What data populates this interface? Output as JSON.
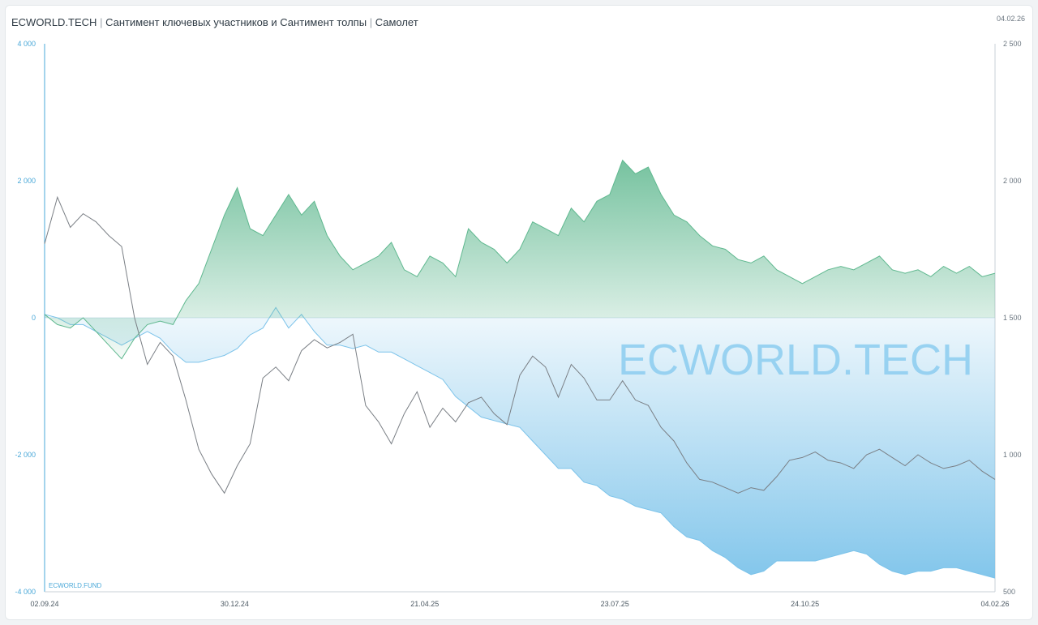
{
  "header": {
    "brand": "ECWORLD.TECH",
    "subtitle": "Сантимент ключевых участников и Сантимент толпы",
    "ticker": "Самолет",
    "separator": "|",
    "top_right_date": "04.02.26"
  },
  "watermark": "ECWORLD.TECH",
  "footer_label": "ECWORLD.FUND",
  "colors": {
    "key_participants": "#5fb88f",
    "crowd": "#7cc3ea",
    "price": "#7a7f85",
    "axis_left": "#4aa8d8",
    "axis_right": "#6b7680",
    "watermark": "#8ccdf0"
  },
  "chart_data": {
    "type": "area",
    "title": "ECWORLD.TECH | Сантимент ключевых участников и Сантимент толпы | Самолет",
    "x_ticks": [
      "02.09.24",
      "30.12.24",
      "21.04.25",
      "23.07.25",
      "24.10.25",
      "04.02.26"
    ],
    "x_count": 75,
    "left_axis": {
      "min": -4000,
      "max": 4000,
      "ticks": [
        "4 000",
        "2 000",
        "0",
        "-2 000",
        "-4 000"
      ],
      "tick_values": [
        4000,
        2000,
        0,
        -2000,
        -4000
      ]
    },
    "right_axis": {
      "min": 500,
      "max": 2500,
      "ticks": [
        "2 500",
        "2 000",
        "1 500",
        "1 000",
        "500"
      ],
      "tick_values": [
        2500,
        2000,
        1500,
        1000,
        500
      ]
    },
    "series": [
      {
        "name": "Сантимент ключевых участников",
        "axis": "left",
        "style": "area",
        "values": [
          50,
          -100,
          -150,
          0,
          -200,
          -400,
          -600,
          -300,
          -100,
          -50,
          -100,
          250,
          500,
          1000,
          1500,
          1900,
          1300,
          1200,
          1500,
          1800,
          1500,
          1700,
          1200,
          900,
          700,
          800,
          900,
          1100,
          700,
          600,
          900,
          800,
          600,
          1300,
          1100,
          1000,
          800,
          1000,
          1400,
          1300,
          1200,
          1600,
          1400,
          1700,
          1800,
          2300,
          2100,
          2200,
          1800,
          1500,
          1400,
          1200,
          1050,
          1000,
          850,
          800,
          900,
          700,
          600,
          500,
          600,
          700,
          750,
          700,
          800,
          900,
          700,
          650,
          700,
          600,
          750,
          650,
          750,
          600,
          650
        ]
      },
      {
        "name": "Сантимент толпы",
        "axis": "left",
        "style": "area",
        "values": [
          50,
          0,
          -100,
          -100,
          -200,
          -300,
          -400,
          -300,
          -200,
          -300,
          -500,
          -650,
          -650,
          -600,
          -550,
          -450,
          -250,
          -150,
          150,
          -150,
          50,
          -200,
          -400,
          -400,
          -450,
          -400,
          -500,
          -500,
          -600,
          -700,
          -800,
          -900,
          -1150,
          -1300,
          -1450,
          -1500,
          -1550,
          -1600,
          -1800,
          -2000,
          -2200,
          -2200,
          -2400,
          -2450,
          -2600,
          -2650,
          -2750,
          -2800,
          -2850,
          -3050,
          -3200,
          -3250,
          -3400,
          -3500,
          -3650,
          -3750,
          -3700,
          -3550,
          -3550,
          -3550,
          -3550,
          -3500,
          -3450,
          -3400,
          -3450,
          -3600,
          -3700,
          -3750,
          -3700,
          -3700,
          -3650,
          -3650,
          -3700,
          -3750,
          -3800
        ]
      },
      {
        "name": "Самолет",
        "axis": "right",
        "style": "line",
        "values": [
          1770,
          1940,
          1830,
          1880,
          1850,
          1800,
          1760,
          1500,
          1330,
          1410,
          1360,
          1200,
          1020,
          930,
          860,
          960,
          1040,
          1280,
          1320,
          1270,
          1380,
          1420,
          1390,
          1410,
          1440,
          1180,
          1120,
          1040,
          1150,
          1230,
          1100,
          1170,
          1120,
          1190,
          1210,
          1150,
          1110,
          1290,
          1360,
          1320,
          1210,
          1330,
          1280,
          1200,
          1200,
          1270,
          1200,
          1180,
          1100,
          1050,
          970,
          910,
          900,
          880,
          860,
          880,
          870,
          920,
          980,
          990,
          1010,
          980,
          970,
          950,
          1000,
          1020,
          990,
          960,
          1000,
          970,
          950,
          960,
          980,
          940,
          910
        ]
      }
    ]
  }
}
